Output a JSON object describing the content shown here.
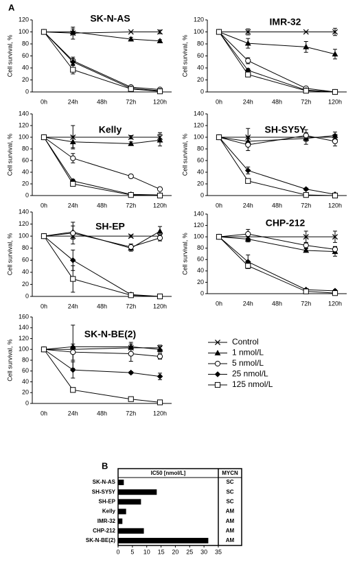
{
  "panel_labels": [
    "A",
    "B"
  ],
  "chart_data": [
    {
      "type": "line",
      "title": "SK-N-AS",
      "y_label": "Cell survival, %",
      "categories": [
        "0h",
        "24h",
        "48h",
        "72h",
        "120h"
      ],
      "x": [
        "0h",
        "24h",
        "72h",
        "120h"
      ],
      "ylim": [
        0,
        120
      ],
      "yticks": [
        0,
        20,
        40,
        60,
        80,
        100,
        120
      ],
      "color": "#000000",
      "series": [
        {
          "name": "Control",
          "marker": "cross",
          "values": [
            100,
            98,
            100,
            100
          ],
          "errors": [
            0,
            10,
            0,
            3
          ]
        },
        {
          "name": "1 nmol/L",
          "marker": "triangle",
          "values": [
            100,
            100,
            88,
            85
          ],
          "errors": [
            0,
            5,
            3,
            2
          ]
        },
        {
          "name": "5 nmol/L",
          "marker": "circle",
          "values": [
            100,
            52,
            8,
            4
          ],
          "errors": [
            0,
            6,
            2,
            1
          ]
        },
        {
          "name": "25 nmol/L",
          "marker": "diamond",
          "values": [
            100,
            50,
            6,
            2
          ],
          "errors": [
            0,
            5,
            2,
            1
          ]
        },
        {
          "name": "125 nmol/L",
          "marker": "square",
          "values": [
            100,
            37,
            5,
            1
          ],
          "errors": [
            0,
            7,
            2,
            1
          ]
        }
      ]
    },
    {
      "type": "line",
      "title": "IMR-32",
      "y_label": "Cell survival, %",
      "categories": [
        "0h",
        "24h",
        "48h",
        "72h",
        "120h"
      ],
      "x": [
        "0h",
        "24h",
        "72h",
        "120h"
      ],
      "ylim": [
        0,
        120
      ],
      "yticks": [
        0,
        20,
        40,
        60,
        80,
        100,
        120
      ],
      "series": [
        {
          "values": [
            100,
            100,
            100,
            100
          ],
          "errors": [
            0,
            5,
            0,
            6
          ]
        },
        {
          "values": [
            100,
            81,
            75,
            63
          ],
          "errors": [
            0,
            8,
            9,
            8
          ]
        },
        {
          "values": [
            100,
            52,
            6,
            0
          ],
          "errors": [
            0,
            5,
            1,
            1
          ]
        },
        {
          "values": [
            100,
            36,
            3,
            0
          ],
          "errors": [
            0,
            3,
            1,
            1
          ]
        },
        {
          "values": [
            100,
            29,
            2,
            0
          ],
          "errors": [
            0,
            3,
            1,
            1
          ]
        }
      ]
    },
    {
      "type": "line",
      "title": "Kelly",
      "y_label": "Cell survival, %",
      "categories": [
        "0h",
        "24h",
        "48h",
        "72h",
        "120h"
      ],
      "x": [
        "0h",
        "24h",
        "72h",
        "120h"
      ],
      "ylim": [
        0,
        140
      ],
      "yticks": [
        0,
        20,
        40,
        60,
        80,
        100,
        120,
        140
      ],
      "series": [
        {
          "values": [
            100,
            100,
            100,
            100
          ],
          "errors": [
            0,
            20,
            3,
            8
          ]
        },
        {
          "values": [
            100,
            92,
            89,
            95
          ],
          "errors": [
            0,
            10,
            3,
            10
          ]
        },
        {
          "values": [
            100,
            64,
            33,
            11
          ],
          "errors": [
            0,
            8,
            3,
            3
          ]
        },
        {
          "values": [
            100,
            25,
            2,
            1
          ],
          "errors": [
            0,
            3,
            1,
            1
          ]
        },
        {
          "values": [
            100,
            20,
            1,
            0
          ],
          "errors": [
            0,
            3,
            1,
            1
          ]
        }
      ]
    },
    {
      "type": "line",
      "title": "SH-SY5Y",
      "y_label": "Cell survival, %",
      "categories": [
        "0h",
        "24h",
        "48h",
        "72h",
        "120h"
      ],
      "x": [
        "0h",
        "24h",
        "72h",
        "120h"
      ],
      "ylim": [
        0,
        140
      ],
      "yticks": [
        0,
        20,
        40,
        60,
        80,
        100,
        120,
        140
      ],
      "series": [
        {
          "values": [
            100,
            100,
            100,
            100
          ],
          "errors": [
            0,
            15,
            5,
            5
          ]
        },
        {
          "values": [
            100,
            93,
            98,
            103
          ],
          "errors": [
            0,
            8,
            10,
            6
          ]
        },
        {
          "values": [
            100,
            87,
            103,
            93
          ],
          "errors": [
            0,
            10,
            10,
            8
          ]
        },
        {
          "values": [
            100,
            43,
            11,
            2
          ],
          "errors": [
            0,
            6,
            2,
            1
          ]
        },
        {
          "values": [
            100,
            25,
            1,
            0
          ],
          "errors": [
            0,
            3,
            1,
            1
          ]
        }
      ]
    },
    {
      "type": "line",
      "title": "SH-EP",
      "y_label": "Cell survival, %",
      "categories": [
        "0h",
        "24h",
        "48h",
        "72h",
        "120h"
      ],
      "x": [
        "0h",
        "24h",
        "72h",
        "120h"
      ],
      "ylim": [
        0,
        140
      ],
      "yticks": [
        0,
        20,
        40,
        60,
        80,
        100,
        120,
        140
      ],
      "series": [
        {
          "values": [
            100,
            100,
            100,
            100
          ],
          "errors": [
            0,
            5,
            2,
            5
          ]
        },
        {
          "values": [
            100,
            107,
            80,
            108
          ],
          "errors": [
            0,
            10,
            5,
            8
          ]
        },
        {
          "values": [
            100,
            105,
            82,
            97
          ],
          "errors": [
            0,
            18,
            5,
            5
          ]
        },
        {
          "values": [
            100,
            60,
            3,
            0
          ],
          "errors": [
            0,
            17,
            1,
            1
          ]
        },
        {
          "values": [
            100,
            29,
            2,
            0
          ],
          "errors": [
            0,
            22,
            1,
            1
          ]
        }
      ]
    },
    {
      "type": "line",
      "title": "CHP-212",
      "y_label": "Cell survival, %",
      "categories": [
        "0h",
        "24h",
        "48h",
        "72h",
        "120h"
      ],
      "x": [
        "0h",
        "24h",
        "72h",
        "120h"
      ],
      "ylim": [
        0,
        140
      ],
      "yticks": [
        0,
        20,
        40,
        60,
        80,
        100,
        120,
        140
      ],
      "series": [
        {
          "values": [
            100,
            100,
            100,
            100
          ],
          "errors": [
            0,
            5,
            10,
            10
          ]
        },
        {
          "values": [
            100,
            96,
            76,
            74
          ],
          "errors": [
            0,
            5,
            3,
            8
          ]
        },
        {
          "values": [
            100,
            105,
            85,
            78
          ],
          "errors": [
            0,
            8,
            5,
            5
          ]
        },
        {
          "values": [
            100,
            56,
            7,
            5
          ],
          "errors": [
            0,
            12,
            2,
            2
          ]
        },
        {
          "values": [
            100,
            49,
            4,
            1
          ],
          "errors": [
            0,
            4,
            1,
            1
          ]
        }
      ]
    },
    {
      "type": "line",
      "title": "SK-N-BE(2)",
      "y_label": "Cell survival, %",
      "categories": [
        "0h",
        "24h",
        "48h",
        "72h",
        "120h"
      ],
      "x": [
        "0h",
        "24h",
        "72h",
        "120h"
      ],
      "ylim": [
        0,
        160
      ],
      "yticks": [
        0,
        20,
        40,
        60,
        80,
        100,
        120,
        140,
        160
      ],
      "series": [
        {
          "values": [
            100,
            100,
            103,
            103
          ],
          "errors": [
            0,
            6,
            10,
            5
          ]
        },
        {
          "values": [
            100,
            105,
            105,
            100
          ],
          "errors": [
            0,
            40,
            5,
            5
          ]
        },
        {
          "values": [
            100,
            95,
            92,
            87
          ],
          "errors": [
            0,
            15,
            14,
            5
          ]
        },
        {
          "values": [
            100,
            62,
            57,
            50
          ],
          "errors": [
            0,
            15,
            2,
            6
          ]
        },
        {
          "values": [
            100,
            25,
            8,
            2
          ],
          "errors": [
            0,
            2,
            1,
            1
          ]
        }
      ]
    },
    {
      "type": "hbar",
      "x_label": "IC50 [nmol/L]",
      "categories": [
        "SK-N-AS",
        "SH-SY5Y",
        "SH-EP",
        "Kelly",
        "IMR-32",
        "CHP-212",
        "SK-N-BE(2)"
      ],
      "values": [
        2,
        13.5,
        8,
        2.8,
        1.5,
        9,
        31.5
      ],
      "color": "#000000",
      "xlim": [
        0,
        35
      ],
      "xticks": [
        0,
        5,
        10,
        15,
        20,
        25,
        30,
        35
      ],
      "table": {
        "header": "MYCN",
        "values": [
          "SC",
          "SC",
          "SC",
          "AM",
          "AM",
          "AM",
          "AM"
        ]
      }
    }
  ]
}
